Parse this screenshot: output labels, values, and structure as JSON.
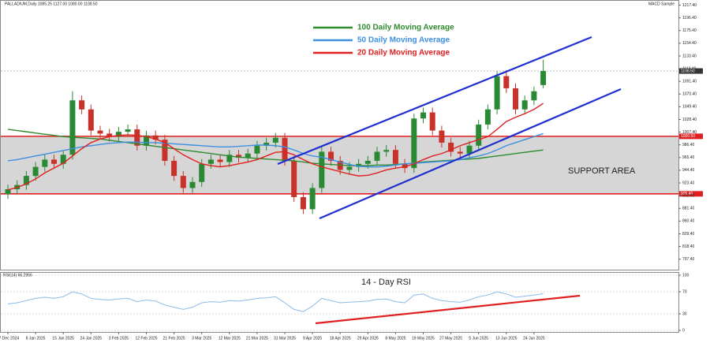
{
  "chart_data": {
    "type": "candlestick",
    "title": "PALLADIUM,Daily 1085.25 1127.00 1080.00 1108.50",
    "indicator_label": "MACD Sample",
    "up_color": "#2a8a34",
    "down_color": "#c8322a",
    "categories": [
      "27 Dec 2024",
      null,
      null,
      "8 Jan 2025",
      null,
      null,
      "15 Jan 2025",
      null,
      null,
      "24 Jan 2025",
      null,
      null,
      "3 Feb 2025",
      null,
      null,
      "12 Feb 2025",
      null,
      null,
      "21 Feb 2025",
      null,
      null,
      "3 Mar 2025",
      null,
      null,
      "12 Mar 2025",
      null,
      null,
      "21 Mar 2025",
      null,
      null,
      "31 Mar 2025",
      null,
      null,
      "9 Apr 2025",
      null,
      null,
      "18 Apr 2025",
      null,
      null,
      "29 Apr 2025",
      null,
      null,
      "8 May 2025",
      null,
      null,
      "19 May 2025",
      null,
      null,
      "27 May 2025",
      null,
      null,
      "5 Jun 2025",
      null,
      null,
      "13 Jun 2025",
      null,
      null,
      "24 Jun 2025",
      null
    ],
    "open": [
      905,
      913,
      920,
      935,
      950,
      962,
      955,
      970,
      1060,
      1045,
      1010,
      1005,
      1000,
      1008,
      1012,
      985,
      1002,
      995,
      960,
      935,
      915,
      925,
      955,
      962,
      958,
      970,
      965,
      972,
      985,
      990,
      998,
      960,
      900,
      880,
      915,
      975,
      960,
      945,
      950,
      955,
      960,
      975,
      978,
      955,
      948,
      1030,
      1040,
      1010,
      990,
      975,
      972,
      985,
      1020,
      1045,
      1100,
      1080,
      1045,
      1060,
      1085.25
    ],
    "high": [
      921,
      928,
      943,
      958,
      970,
      970,
      976,
      1075,
      1068,
      1053,
      1018,
      1013,
      1016,
      1020,
      1020,
      1010,
      1010,
      1003,
      968,
      943,
      933,
      963,
      970,
      970,
      978,
      978,
      980,
      993,
      998,
      1006,
      1006,
      968,
      908,
      923,
      983,
      983,
      968,
      958,
      963,
      968,
      983,
      986,
      986,
      963,
      1038,
      1048,
      1048,
      1018,
      998,
      983,
      993,
      1028,
      1053,
      1108,
      1110,
      1088,
      1068,
      1083,
      1127
    ],
    "low": [
      897,
      905,
      912,
      927,
      942,
      947,
      947,
      962,
      1037,
      1002,
      997,
      992,
      992,
      1000,
      977,
      977,
      987,
      952,
      927,
      907,
      907,
      917,
      947,
      950,
      950,
      957,
      957,
      964,
      977,
      982,
      952,
      892,
      872,
      872,
      907,
      952,
      937,
      937,
      942,
      947,
      952,
      967,
      947,
      940,
      940,
      1022,
      1002,
      982,
      967,
      964,
      964,
      977,
      1012,
      1037,
      1072,
      1037,
      1037,
      1052,
      1080
    ],
    "close": [
      913,
      920,
      935,
      950,
      962,
      955,
      970,
      1060,
      1045,
      1010,
      1005,
      1000,
      1008,
      1012,
      985,
      1002,
      995,
      960,
      935,
      915,
      925,
      955,
      962,
      958,
      970,
      965,
      972,
      985,
      990,
      998,
      960,
      900,
      880,
      915,
      975,
      960,
      945,
      950,
      955,
      960,
      975,
      978,
      955,
      948,
      1030,
      1040,
      1010,
      990,
      975,
      972,
      985,
      1020,
      1045,
      1100,
      1080,
      1045,
      1060,
      1075,
      1108.5
    ],
    "series": [
      {
        "name": "100 Daily Moving Average",
        "color": "#2e8b2e",
        "values": [
          1012,
          1010,
          1008,
          1006,
          1004,
          1002,
          1000,
          999,
          998,
          997,
          996,
          994,
          992,
          990,
          988,
          986,
          984,
          982,
          980,
          978,
          976,
          974,
          972,
          970,
          968,
          966,
          965,
          964,
          963,
          962,
          961,
          960,
          958,
          956,
          955,
          954,
          953,
          952,
          952,
          952,
          953,
          953,
          954,
          955,
          956,
          958,
          959,
          960,
          961,
          962,
          963,
          964,
          966,
          968,
          970,
          972,
          974,
          976,
          978
        ]
      },
      {
        "name": "50 Daily Moving Average",
        "color": "#3d8fe0",
        "values": [
          960,
          962,
          965,
          968,
          971,
          974,
          977,
          980,
          983,
          985,
          987,
          989,
          990,
          991,
          991,
          990,
          990,
          989,
          988,
          987,
          986,
          985,
          984,
          983,
          983,
          984,
          985,
          986,
          986,
          985,
          983,
          978,
          972,
          968,
          966,
          962,
          958,
          954,
          951,
          950,
          950,
          951,
          953,
          955,
          956,
          957,
          958,
          959,
          960,
          962,
          965,
          968,
          972,
          978,
          985,
          990,
          995,
          1000,
          1005
        ]
      },
      {
        "name": "20 Daily Moving Average",
        "color": "#e02020",
        "values": [
          912,
          916,
          922,
          930,
          940,
          948,
          956,
          968,
          980,
          990,
          996,
          1000,
          1002,
          1003,
          1002,
          1000,
          996,
          990,
          980,
          970,
          962,
          955,
          952,
          950,
          952,
          955,
          958,
          962,
          968,
          974,
          975,
          970,
          962,
          955,
          950,
          946,
          942,
          938,
          935,
          936,
          940,
          945,
          948,
          950,
          955,
          962,
          968,
          972,
          978,
          985,
          990,
          995,
          1000,
          1012,
          1025,
          1032,
          1038,
          1045,
          1055
        ]
      }
    ],
    "ylim": [
      780,
      1222
    ],
    "yticks": [
      {
        "value": 1217.4,
        "label": "1217.40"
      },
      {
        "value": 1196.4,
        "label": "1196.40"
      },
      {
        "value": 1175.4,
        "label": "1175.40"
      },
      {
        "value": 1154.4,
        "label": "1154.40"
      },
      {
        "value": 1133.4,
        "label": "1133.40"
      },
      {
        "value": 1112.4,
        "label": "1112.40"
      },
      {
        "value": 1091.4,
        "label": "1091.40"
      },
      {
        "value": 1070.4,
        "label": "1070.40"
      },
      {
        "value": 1049.4,
        "label": "1049.40"
      },
      {
        "value": 1028.4,
        "label": "1028.40"
      },
      {
        "value": 1007.4,
        "label": "1007.40"
      },
      {
        "value": 986.4,
        "label": "986.40"
      },
      {
        "value": 965.4,
        "label": "965.40"
      },
      {
        "value": 944.4,
        "label": "944.40"
      },
      {
        "value": 923.4,
        "label": "923.40"
      },
      {
        "value": 902.4,
        "label": "902.40"
      },
      {
        "value": 881.4,
        "label": "881.40"
      },
      {
        "value": 860.4,
        "label": "860.40"
      },
      {
        "value": 839.4,
        "label": "839.40"
      },
      {
        "value": 818.4,
        "label": "818.40"
      },
      {
        "value": 797.4,
        "label": "797.40"
      }
    ],
    "last_price": {
      "value": 1108.5,
      "label": "1108.50"
    },
    "support_levels": [
      {
        "value": 1000.5,
        "label": "1000.50"
      },
      {
        "value": 905.4,
        "label": "905.40"
      }
    ],
    "support_color": "#e02020",
    "annotations": [
      "SUPPORT AREA",
      "14 - Day RSI"
    ],
    "rsi": {
      "label": "RSI(14) 66.2956",
      "color": "#8bbbe8",
      "values": [
        48,
        50,
        54,
        58,
        60,
        58,
        61,
        70,
        66,
        58,
        56,
        55,
        57,
        58,
        52,
        55,
        53,
        46,
        42,
        38,
        42,
        50,
        52,
        51,
        54,
        53,
        55,
        58,
        59,
        61,
        50,
        38,
        34,
        44,
        58,
        54,
        50,
        51,
        52,
        53,
        56,
        57,
        52,
        50,
        64,
        66,
        58,
        54,
        52,
        51,
        55,
        61,
        64,
        70,
        66,
        60,
        62,
        64,
        66.3
      ],
      "ylim": [
        0,
        100
      ],
      "yticks": [
        0,
        30,
        70,
        100
      ]
    }
  }
}
